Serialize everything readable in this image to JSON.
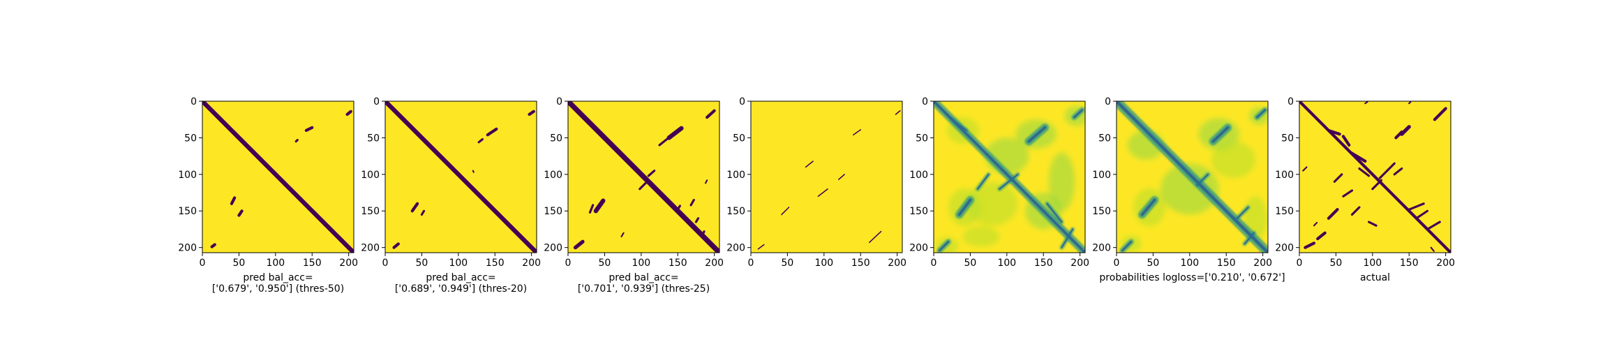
{
  "chart_data": [
    {
      "type": "heatmap",
      "caption": [
        "pred bal_acc=",
        "['0.679', '0.950'] (thres-50)"
      ],
      "xticks": [
        0,
        50,
        100,
        150,
        200
      ],
      "yticks": [
        0,
        50,
        100,
        150,
        200
      ],
      "xlim": [
        0,
        207
      ],
      "ylim": [
        207,
        0
      ],
      "colorscale": "binary",
      "segments": [
        {
          "x1": 0,
          "y1": 0,
          "x2": 207,
          "y2": 207,
          "w": 6
        },
        {
          "x1": 142,
          "y1": 40,
          "x2": 150,
          "y2": 36,
          "w": 4
        },
        {
          "x1": 128,
          "y1": 55,
          "x2": 130,
          "y2": 53,
          "w": 3
        },
        {
          "x1": 40,
          "y1": 140,
          "x2": 44,
          "y2": 132,
          "w": 4
        },
        {
          "x1": 50,
          "y1": 156,
          "x2": 54,
          "y2": 150,
          "w": 4
        },
        {
          "x1": 13,
          "y1": 199,
          "x2": 17,
          "y2": 196,
          "w": 4
        },
        {
          "x1": 198,
          "y1": 18,
          "x2": 203,
          "y2": 14,
          "w": 4
        }
      ]
    },
    {
      "type": "heatmap",
      "caption": [
        "pred bal_acc=",
        "['0.689', '0.949'] (thres-20)"
      ],
      "xticks": [
        0,
        50,
        100,
        150,
        200
      ],
      "yticks": [
        0,
        50,
        100,
        150,
        200
      ],
      "xlim": [
        0,
        207
      ],
      "ylim": [
        207,
        0
      ],
      "colorscale": "binary",
      "segments": [
        {
          "x1": 0,
          "y1": 0,
          "x2": 207,
          "y2": 207,
          "w": 6
        },
        {
          "x1": 140,
          "y1": 46,
          "x2": 152,
          "y2": 38,
          "w": 4
        },
        {
          "x1": 128,
          "y1": 56,
          "x2": 133,
          "y2": 52,
          "w": 3
        },
        {
          "x1": 37,
          "y1": 150,
          "x2": 44,
          "y2": 140,
          "w": 4
        },
        {
          "x1": 50,
          "y1": 155,
          "x2": 53,
          "y2": 150,
          "w": 3
        },
        {
          "x1": 12,
          "y1": 200,
          "x2": 18,
          "y2": 195,
          "w": 4
        },
        {
          "x1": 197,
          "y1": 18,
          "x2": 203,
          "y2": 14,
          "w": 4
        },
        {
          "x1": 120,
          "y1": 95,
          "x2": 121,
          "y2": 97,
          "w": 2
        }
      ]
    },
    {
      "type": "heatmap",
      "caption": [
        "pred bal_acc=",
        "['0.701', '0.939'] (thres-25)"
      ],
      "xticks": [
        0,
        50,
        100,
        150,
        200
      ],
      "yticks": [
        0,
        50,
        100,
        150,
        200
      ],
      "xlim": [
        0,
        207
      ],
      "ylim": [
        207,
        0
      ],
      "colorscale": "binary",
      "segments": [
        {
          "x1": 0,
          "y1": 0,
          "x2": 207,
          "y2": 207,
          "w": 7
        },
        {
          "x1": 138,
          "y1": 50,
          "x2": 155,
          "y2": 37,
          "w": 6
        },
        {
          "x1": 125,
          "y1": 60,
          "x2": 135,
          "y2": 52,
          "w": 3
        },
        {
          "x1": 190,
          "y1": 22,
          "x2": 200,
          "y2": 13,
          "w": 4
        },
        {
          "x1": 38,
          "y1": 150,
          "x2": 48,
          "y2": 136,
          "w": 6
        },
        {
          "x1": 30,
          "y1": 152,
          "x2": 34,
          "y2": 142,
          "w": 3
        },
        {
          "x1": 98,
          "y1": 120,
          "x2": 106,
          "y2": 112,
          "w": 3
        },
        {
          "x1": 110,
          "y1": 102,
          "x2": 118,
          "y2": 95,
          "w": 3
        },
        {
          "x1": 10,
          "y1": 200,
          "x2": 20,
          "y2": 192,
          "w": 5
        },
        {
          "x1": 175,
          "y1": 165,
          "x2": 178,
          "y2": 160,
          "w": 3
        },
        {
          "x1": 183,
          "y1": 185,
          "x2": 186,
          "y2": 178,
          "w": 3
        },
        {
          "x1": 150,
          "y1": 148,
          "x2": 153,
          "y2": 143,
          "w": 3
        },
        {
          "x1": 168,
          "y1": 142,
          "x2": 172,
          "y2": 135,
          "w": 3
        },
        {
          "x1": 73,
          "y1": 185,
          "x2": 76,
          "y2": 180,
          "w": 2
        },
        {
          "x1": 188,
          "y1": 112,
          "x2": 190,
          "y2": 108,
          "w": 2
        }
      ]
    },
    {
      "type": "heatmap",
      "caption": [],
      "xticks": [
        0,
        50,
        100,
        150,
        200
      ],
      "yticks": [
        0,
        50,
        100,
        150,
        200
      ],
      "xlim": [
        0,
        207
      ],
      "ylim": [
        207,
        0
      ],
      "colorscale": "binary",
      "segments": [
        {
          "x1": 140,
          "y1": 46,
          "x2": 150,
          "y2": 39,
          "w": 1.5
        },
        {
          "x1": 75,
          "y1": 90,
          "x2": 85,
          "y2": 82,
          "w": 1.5
        },
        {
          "x1": 92,
          "y1": 130,
          "x2": 105,
          "y2": 120,
          "w": 1.5
        },
        {
          "x1": 120,
          "y1": 107,
          "x2": 128,
          "y2": 100,
          "w": 1.5
        },
        {
          "x1": 42,
          "y1": 155,
          "x2": 52,
          "y2": 145,
          "w": 1.5
        },
        {
          "x1": 162,
          "y1": 193,
          "x2": 178,
          "y2": 178,
          "w": 1.5
        },
        {
          "x1": 198,
          "y1": 18,
          "x2": 204,
          "y2": 13,
          "w": 1.5
        },
        {
          "x1": 10,
          "y1": 202,
          "x2": 18,
          "y2": 196,
          "w": 1.5
        }
      ]
    },
    {
      "type": "heatmap",
      "caption": [],
      "xticks": [
        0,
        50,
        100,
        150,
        200
      ],
      "yticks": [
        0,
        50,
        100,
        150,
        200
      ],
      "xlim": [
        0,
        207
      ],
      "ylim": [
        207,
        0
      ],
      "colorscale": "probability",
      "blobs": [
        {
          "x": 140,
          "y": 45,
          "rx": 28,
          "ry": 20
        },
        {
          "x": 42,
          "y": 145,
          "rx": 22,
          "ry": 26
        },
        {
          "x": 195,
          "y": 20,
          "rx": 16,
          "ry": 14
        },
        {
          "x": 18,
          "y": 198,
          "rx": 16,
          "ry": 12
        },
        {
          "x": 100,
          "y": 75,
          "rx": 30,
          "ry": 25
        },
        {
          "x": 80,
          "y": 140,
          "rx": 35,
          "ry": 30
        },
        {
          "x": 150,
          "y": 150,
          "rx": 25,
          "ry": 25
        },
        {
          "x": 40,
          "y": 40,
          "rx": 22,
          "ry": 18
        },
        {
          "x": 175,
          "y": 110,
          "rx": 18,
          "ry": 40
        },
        {
          "x": 65,
          "y": 185,
          "rx": 25,
          "ry": 14
        }
      ],
      "segments": [
        {
          "x1": 0,
          "y1": 0,
          "x2": 207,
          "y2": 207,
          "w": 6
        },
        {
          "x1": 130,
          "y1": 55,
          "x2": 152,
          "y2": 36,
          "w": 6
        },
        {
          "x1": 35,
          "y1": 155,
          "x2": 50,
          "y2": 135,
          "w": 6
        },
        {
          "x1": 192,
          "y1": 22,
          "x2": 203,
          "y2": 12,
          "w": 4
        },
        {
          "x1": 8,
          "y1": 204,
          "x2": 20,
          "y2": 192,
          "w": 4
        },
        {
          "x1": 25,
          "y1": 25,
          "x2": 45,
          "y2": 40,
          "w": 3
        },
        {
          "x1": 155,
          "y1": 140,
          "x2": 175,
          "y2": 165,
          "w": 3
        },
        {
          "x1": 90,
          "y1": 120,
          "x2": 115,
          "y2": 100,
          "w": 3
        },
        {
          "x1": 175,
          "y1": 200,
          "x2": 190,
          "y2": 175,
          "w": 3
        },
        {
          "x1": 60,
          "y1": 120,
          "x2": 75,
          "y2": 100,
          "w": 3
        }
      ]
    },
    {
      "type": "heatmap",
      "caption": [
        "probabilities logloss=['0.210', '0.672']"
      ],
      "xticks": [
        0,
        50,
        100,
        150,
        200
      ],
      "yticks": [
        0,
        50,
        100,
        150,
        200
      ],
      "xlim": [
        0,
        207
      ],
      "ylim": [
        207,
        0
      ],
      "colorscale": "probability",
      "blobs": [
        {
          "x": 140,
          "y": 45,
          "rx": 28,
          "ry": 22
        },
        {
          "x": 45,
          "y": 145,
          "rx": 22,
          "ry": 26
        },
        {
          "x": 100,
          "y": 120,
          "rx": 40,
          "ry": 35
        },
        {
          "x": 160,
          "y": 80,
          "rx": 30,
          "ry": 25
        },
        {
          "x": 40,
          "y": 60,
          "rx": 25,
          "ry": 20
        },
        {
          "x": 190,
          "y": 160,
          "rx": 16,
          "ry": 30
        },
        {
          "x": 195,
          "y": 20,
          "rx": 14,
          "ry": 12
        },
        {
          "x": 20,
          "y": 195,
          "rx": 14,
          "ry": 12
        }
      ],
      "segments": [
        {
          "x1": 0,
          "y1": 0,
          "x2": 207,
          "y2": 207,
          "w": 7
        },
        {
          "x1": 132,
          "y1": 55,
          "x2": 152,
          "y2": 36,
          "w": 6
        },
        {
          "x1": 35,
          "y1": 155,
          "x2": 52,
          "y2": 135,
          "w": 6
        },
        {
          "x1": 192,
          "y1": 22,
          "x2": 203,
          "y2": 12,
          "w": 4
        },
        {
          "x1": 8,
          "y1": 204,
          "x2": 20,
          "y2": 192,
          "w": 4
        },
        {
          "x1": 110,
          "y1": 115,
          "x2": 125,
          "y2": 100,
          "w": 3
        },
        {
          "x1": 165,
          "y1": 160,
          "x2": 180,
          "y2": 145,
          "w": 3
        },
        {
          "x1": 175,
          "y1": 195,
          "x2": 188,
          "y2": 180,
          "w": 3
        }
      ]
    },
    {
      "type": "heatmap",
      "caption": [
        "actual"
      ],
      "xticks": [
        0,
        50,
        100,
        150,
        200
      ],
      "yticks": [
        0,
        50,
        100,
        150,
        200
      ],
      "xlim": [
        0,
        207
      ],
      "ylim": [
        207,
        0
      ],
      "colorscale": "binary",
      "segments": [
        {
          "x1": 0,
          "y1": 0,
          "x2": 207,
          "y2": 207,
          "w": 4
        },
        {
          "x1": 40,
          "y1": 40,
          "x2": 55,
          "y2": 45,
          "w": 4
        },
        {
          "x1": 60,
          "y1": 48,
          "x2": 68,
          "y2": 60,
          "w": 4
        },
        {
          "x1": 70,
          "y1": 70,
          "x2": 90,
          "y2": 82,
          "w": 4
        },
        {
          "x1": 82,
          "y1": 92,
          "x2": 95,
          "y2": 102,
          "w": 3
        },
        {
          "x1": 132,
          "y1": 50,
          "x2": 140,
          "y2": 42,
          "w": 4
        },
        {
          "x1": 140,
          "y1": 45,
          "x2": 150,
          "y2": 35,
          "w": 5
        },
        {
          "x1": 185,
          "y1": 25,
          "x2": 200,
          "y2": 10,
          "w": 4
        },
        {
          "x1": 110,
          "y1": 105,
          "x2": 130,
          "y2": 85,
          "w": 3
        },
        {
          "x1": 100,
          "y1": 120,
          "x2": 112,
          "y2": 108,
          "w": 3
        },
        {
          "x1": 40,
          "y1": 160,
          "x2": 52,
          "y2": 148,
          "w": 4
        },
        {
          "x1": 25,
          "y1": 188,
          "x2": 35,
          "y2": 180,
          "w": 4
        },
        {
          "x1": 8,
          "y1": 200,
          "x2": 20,
          "y2": 194,
          "w": 4
        },
        {
          "x1": 150,
          "y1": 148,
          "x2": 170,
          "y2": 140,
          "w": 3
        },
        {
          "x1": 160,
          "y1": 160,
          "x2": 175,
          "y2": 150,
          "w": 3
        },
        {
          "x1": 175,
          "y1": 175,
          "x2": 192,
          "y2": 165,
          "w": 3
        },
        {
          "x1": 60,
          "y1": 130,
          "x2": 72,
          "y2": 122,
          "w": 3
        },
        {
          "x1": 48,
          "y1": 110,
          "x2": 58,
          "y2": 100,
          "w": 3
        },
        {
          "x1": 72,
          "y1": 155,
          "x2": 82,
          "y2": 145,
          "w": 3
        },
        {
          "x1": 95,
          "y1": 165,
          "x2": 105,
          "y2": 170,
          "w": 3
        },
        {
          "x1": 130,
          "y1": 100,
          "x2": 140,
          "y2": 92,
          "w": 3
        },
        {
          "x1": 5,
          "y1": 95,
          "x2": 10,
          "y2": 90,
          "w": 2
        },
        {
          "x1": 90,
          "y1": 3,
          "x2": 93,
          "y2": 1,
          "w": 2
        },
        {
          "x1": 150,
          "y1": 3,
          "x2": 152,
          "y2": 1,
          "w": 2
        },
        {
          "x1": 180,
          "y1": 200,
          "x2": 184,
          "y2": 205,
          "w": 2
        },
        {
          "x1": 20,
          "y1": 170,
          "x2": 24,
          "y2": 166,
          "w": 2
        }
      ]
    }
  ]
}
